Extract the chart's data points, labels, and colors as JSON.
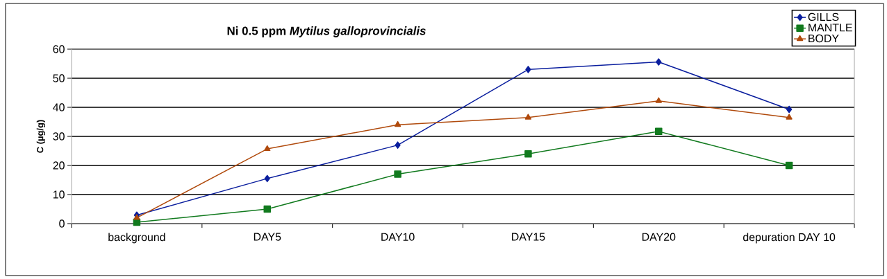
{
  "chart_data": {
    "type": "line",
    "title": "Ni 0.5 ppm *Mytilus galloprovincialis*",
    "ylabel": "C (µg/g)",
    "categories": [
      "background",
      "DAY5",
      "DAY10",
      "DAY15",
      "DAY20",
      "depuration DAY 10"
    ],
    "series": [
      {
        "name": "GILLS",
        "color": "#0a1e9e",
        "marker": "diamond",
        "values": [
          2.9,
          15.5,
          27,
          53,
          55.6,
          39.3
        ]
      },
      {
        "name": "MANTLE",
        "color": "#117a1e",
        "marker": "square",
        "values": [
          0.5,
          5,
          17,
          24,
          31.7,
          20
        ]
      },
      {
        "name": "BODY",
        "color": "#b04a0c",
        "marker": "triangle",
        "values": [
          2,
          25.7,
          34,
          36.5,
          42.2,
          36.5
        ]
      }
    ],
    "ylim": [
      0,
      60
    ],
    "yticks": [
      0,
      10,
      20,
      30,
      40,
      50,
      60
    ],
    "grid": "y",
    "legend": "top right"
  }
}
